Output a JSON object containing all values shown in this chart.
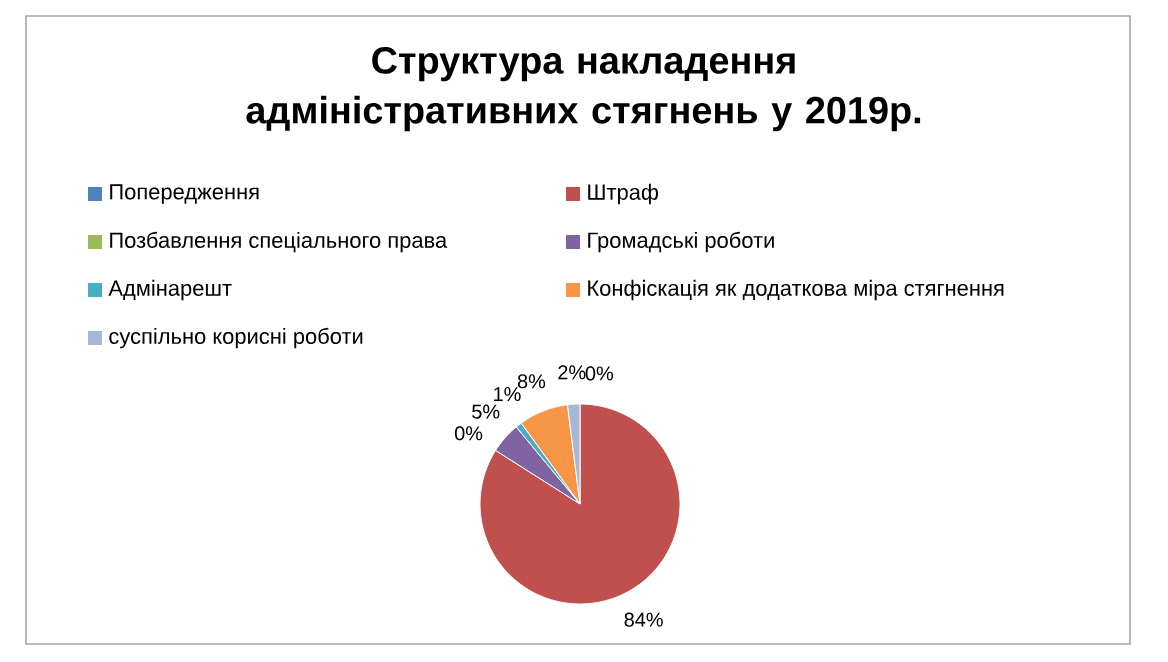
{
  "chart_data": {
    "type": "pie",
    "title": "Структура  накладення  адміністративних стягнень у 2019р.",
    "categories": [
      "Попередження",
      "Штраф",
      "Позбавлення спеціального права",
      "Громадські роботи",
      "Адмінарешт",
      "Конфіскація як додаткова міра стягнення",
      "суспільно корисні роботи"
    ],
    "values": [
      0,
      84,
      0,
      5,
      1,
      8,
      2
    ],
    "colors": [
      "#4f81bd",
      "#c0504d",
      "#9bbb59",
      "#8064a2",
      "#4bacc6",
      "#f79646",
      "#a5b8d8"
    ],
    "value_labels": [
      "0%",
      "84%",
      "0%",
      "5%",
      "1%",
      "8%",
      "2%"
    ],
    "legend": "top"
  }
}
